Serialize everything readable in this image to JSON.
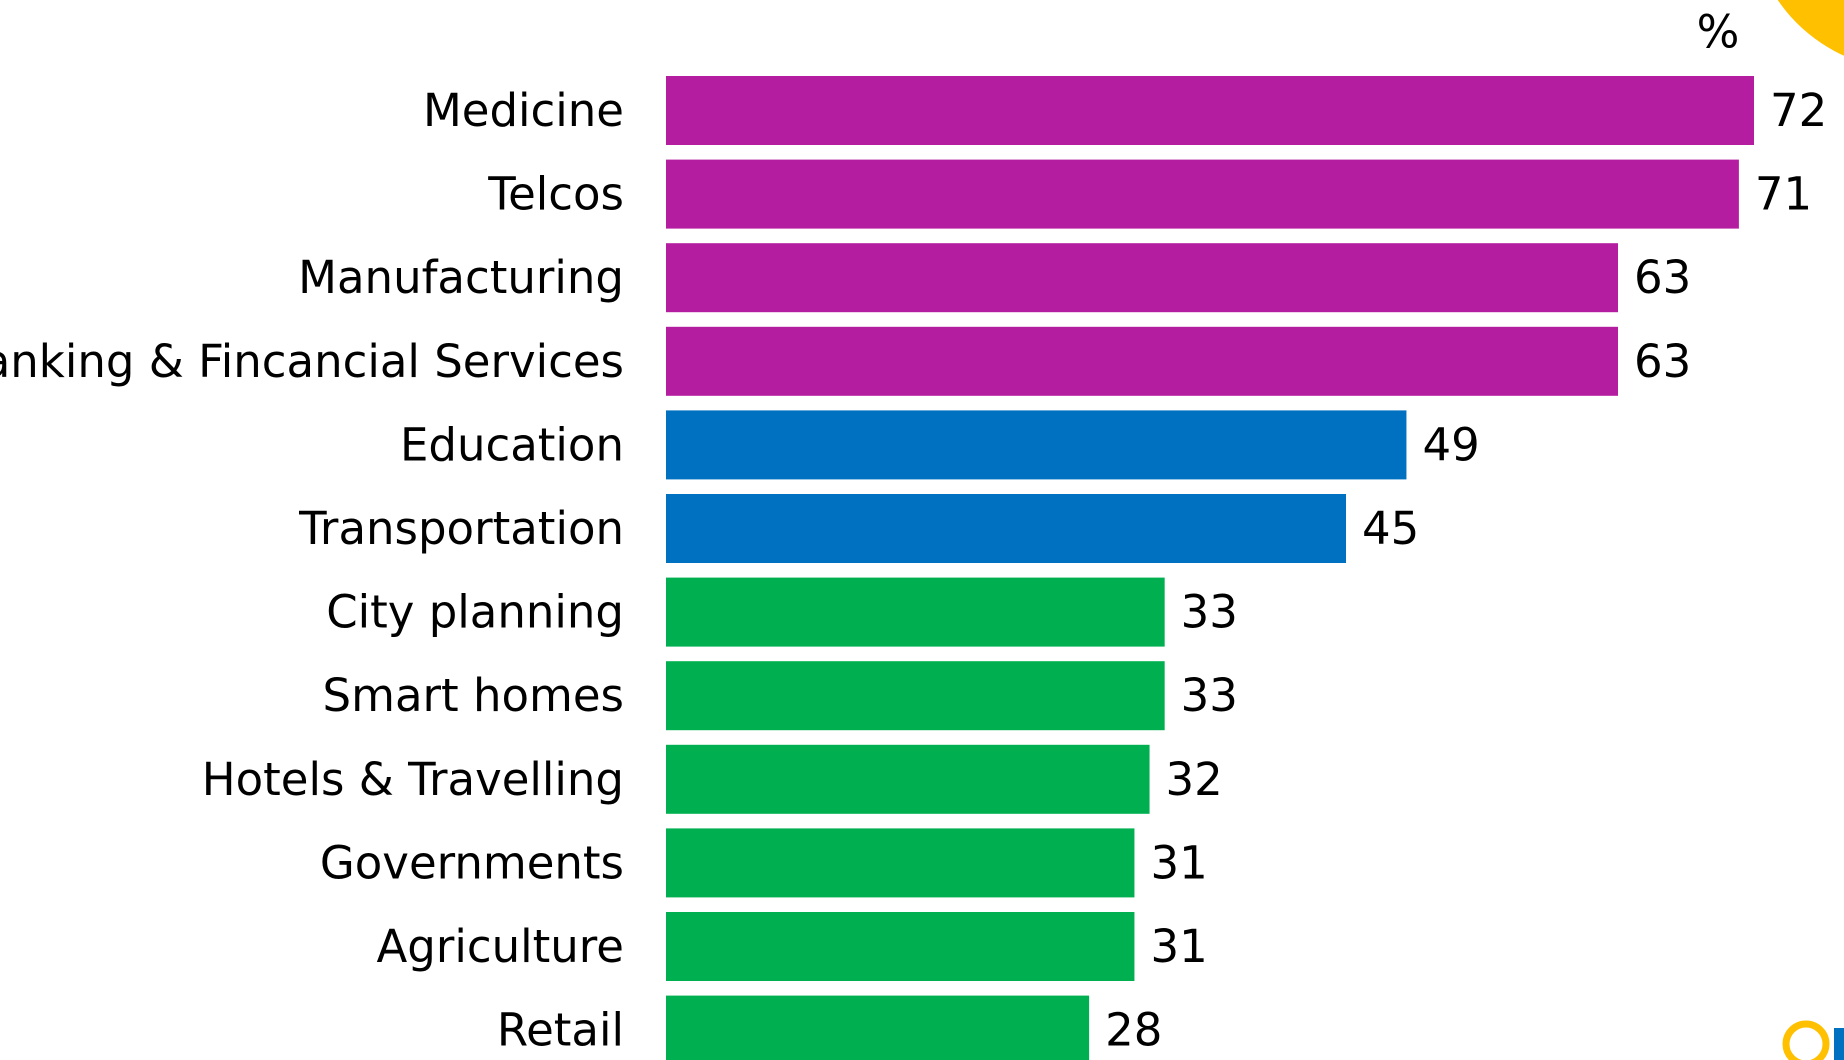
{
  "chart_data": {
    "type": "bar",
    "orientation": "horizontal",
    "unit": "%",
    "categories": [
      "Medicine",
      "Telcos",
      "Manufacturing",
      "Banking & Fincancial Services",
      "Education",
      "Transportation",
      "City planning",
      "Smart homes",
      "Hotels & Travelling",
      "Governments",
      "Agriculture",
      "Retail"
    ],
    "values": [
      72,
      71,
      63,
      63,
      49,
      45,
      33,
      33,
      32,
      31,
      31,
      28
    ],
    "bar_colors": [
      "#B41D9F",
      "#B41D9F",
      "#B41D9F",
      "#B41D9F",
      "#0071C1",
      "#0071C1",
      "#00B050",
      "#00B050",
      "#00B050",
      "#00B050",
      "#00B050",
      "#00B050"
    ],
    "xlim": [
      0,
      72
    ],
    "grid": false,
    "legend": "none"
  },
  "decoration": {
    "accent_color": "#FFC000",
    "logo_ring_color": "#FFC000",
    "logo_accent_color": "#0071C1"
  }
}
